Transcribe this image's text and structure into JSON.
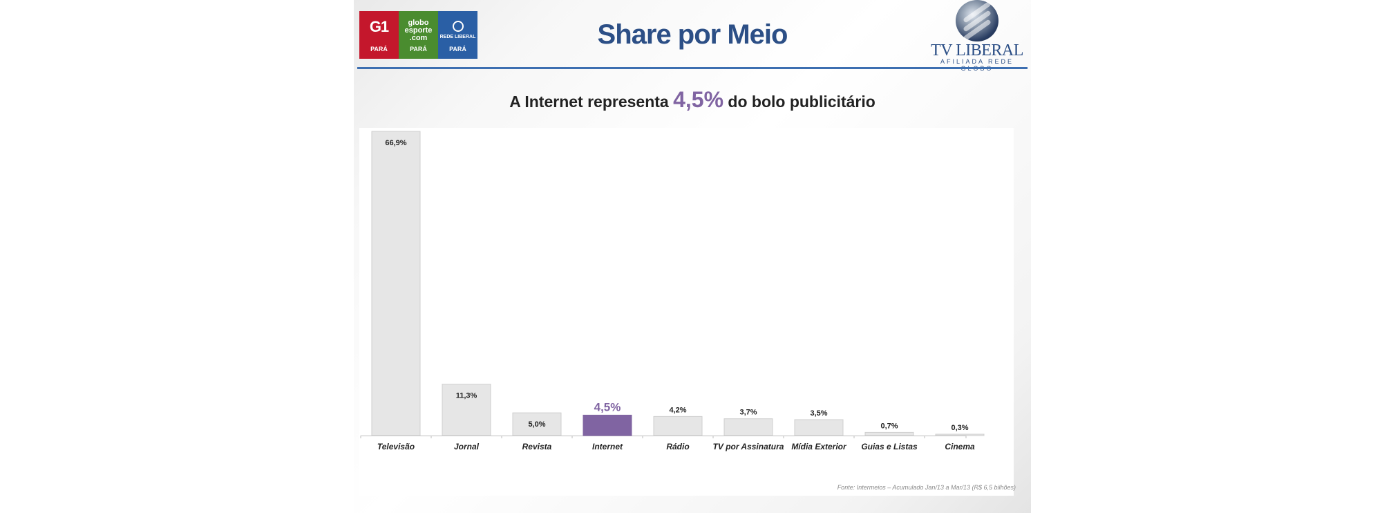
{
  "header": {
    "title": "Share por Meio",
    "logos": [
      {
        "name": "G1",
        "sub": "PARÁ",
        "color": "#c4172c"
      },
      {
        "name": "globo esporte .com",
        "sub": "PARÁ",
        "color": "#4a8c2f"
      },
      {
        "name": "REDE LIBERAL",
        "sub": "PARÁ",
        "color": "#2a5fa5"
      }
    ],
    "brand": {
      "name": "TV LIBERAL",
      "tagline": "AFILIADA REDE GLOBO",
      "color": "#2c4f86"
    },
    "rule_color": "#3d6fb1"
  },
  "headline": {
    "prefix": "A Internet representa ",
    "highlight": "4,5%",
    "suffix": " do bolo publicitário",
    "highlight_color": "#8064a2"
  },
  "chart_data": {
    "type": "bar",
    "categories": [
      "Televisão",
      "Jornal",
      "Revista",
      "Internet",
      "Rádio",
      "TV por Assinatura",
      "Mídia Exterior",
      "Guias e Listas",
      "Cinema"
    ],
    "values": [
      66.9,
      11.3,
      5.0,
      4.5,
      4.2,
      3.7,
      3.5,
      0.7,
      0.3
    ],
    "labels": [
      "66,9%",
      "11,3%",
      "5,0%",
      "4,5%",
      "4,2%",
      "3,7%",
      "3,5%",
      "0,7%",
      "0,3%"
    ],
    "highlight_index": 3,
    "colors": {
      "bar": "#e6e6e6",
      "bar_border": "#cfcfcf",
      "highlight": "#8064a2",
      "axis": "#bdbdbd"
    },
    "title": "",
    "xlabel": "",
    "ylabel": "",
    "ylim": [
      0,
      66.9
    ],
    "grid": false
  },
  "source": "Fonte: Intermeios – Acumulado Jan/13 a Mar/13  (R$ 6,5 bilhões)"
}
